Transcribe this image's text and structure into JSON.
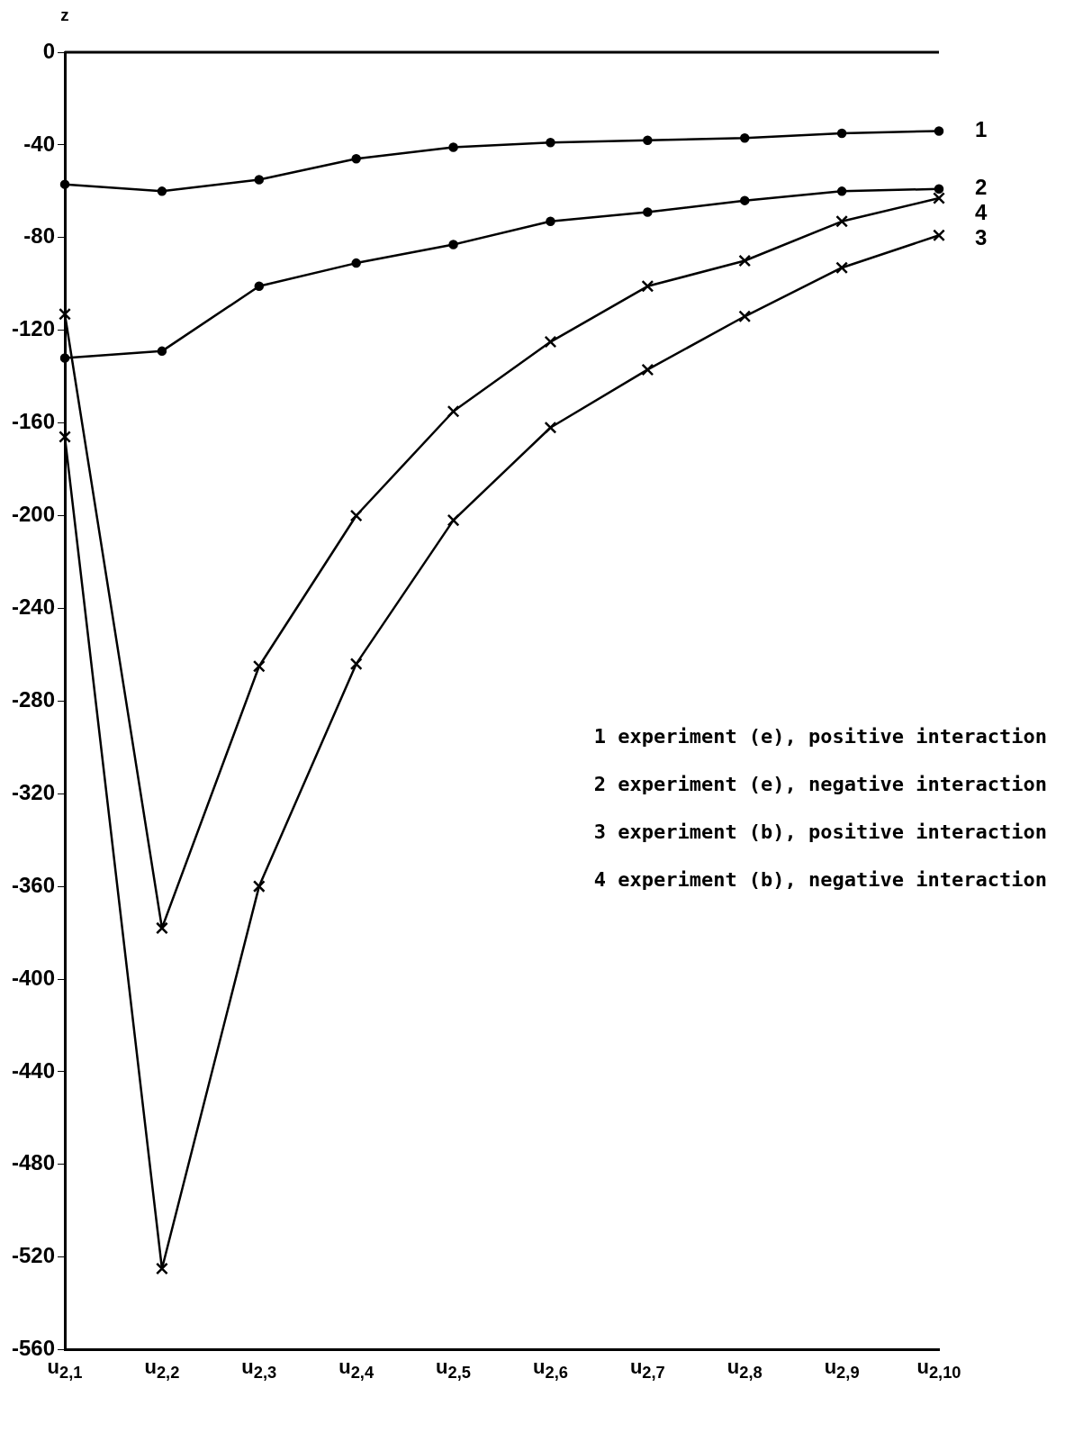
{
  "chart_data": {
    "type": "line",
    "ylabel": "z",
    "categories": [
      "u$_{2,1}$",
      "u$_{2,2}$",
      "u$_{2,3}$",
      "u$_{2,4}$",
      "u$_{2,5}$",
      "u$_{2,6}$",
      "u$_{2,7}$",
      "u$_{2,8}$",
      "u$_{2,9}$",
      "u$_{2,10}$"
    ],
    "series": [
      {
        "name": "1",
        "color": "#000000",
        "marker": "circle",
        "values": [
          -57,
          -60,
          -55,
          -46,
          -41,
          -39,
          -38,
          -37,
          -35,
          -34
        ]
      },
      {
        "name": "2",
        "color": "#000000",
        "marker": "circle",
        "values": [
          -132,
          -129,
          -101,
          -91,
          -83,
          -73,
          -69,
          -64,
          -60,
          -59
        ]
      },
      {
        "name": "3",
        "color": "#000000",
        "marker": "cross",
        "values": [
          -166,
          -525,
          -360,
          -264,
          -202,
          -162,
          -137,
          -114,
          -93,
          -79
        ]
      },
      {
        "name": "4",
        "color": "#000000",
        "marker": "cross",
        "values": [
          -113,
          -378,
          -265,
          -200,
          -155,
          -125,
          -101,
          -90,
          -73,
          -63
        ]
      }
    ],
    "ylim": [
      -560,
      0
    ],
    "yticks": [
      0,
      -40,
      -80,
      -120,
      -160,
      -200,
      -240,
      -280,
      -320,
      -360,
      -400,
      -440,
      -480,
      -520,
      -560
    ],
    "ref_lines": [
      {
        "axis": "y",
        "value": 0,
        "color": "#000000"
      }
    ],
    "annotations": [
      "1 experiment (e), positive interaction",
      "2 experiment (e), negative interaction",
      "3 experiment (b), positive interaction",
      "4 experiment (b), negative interaction"
    ],
    "grid": false,
    "line_style": "solid"
  }
}
